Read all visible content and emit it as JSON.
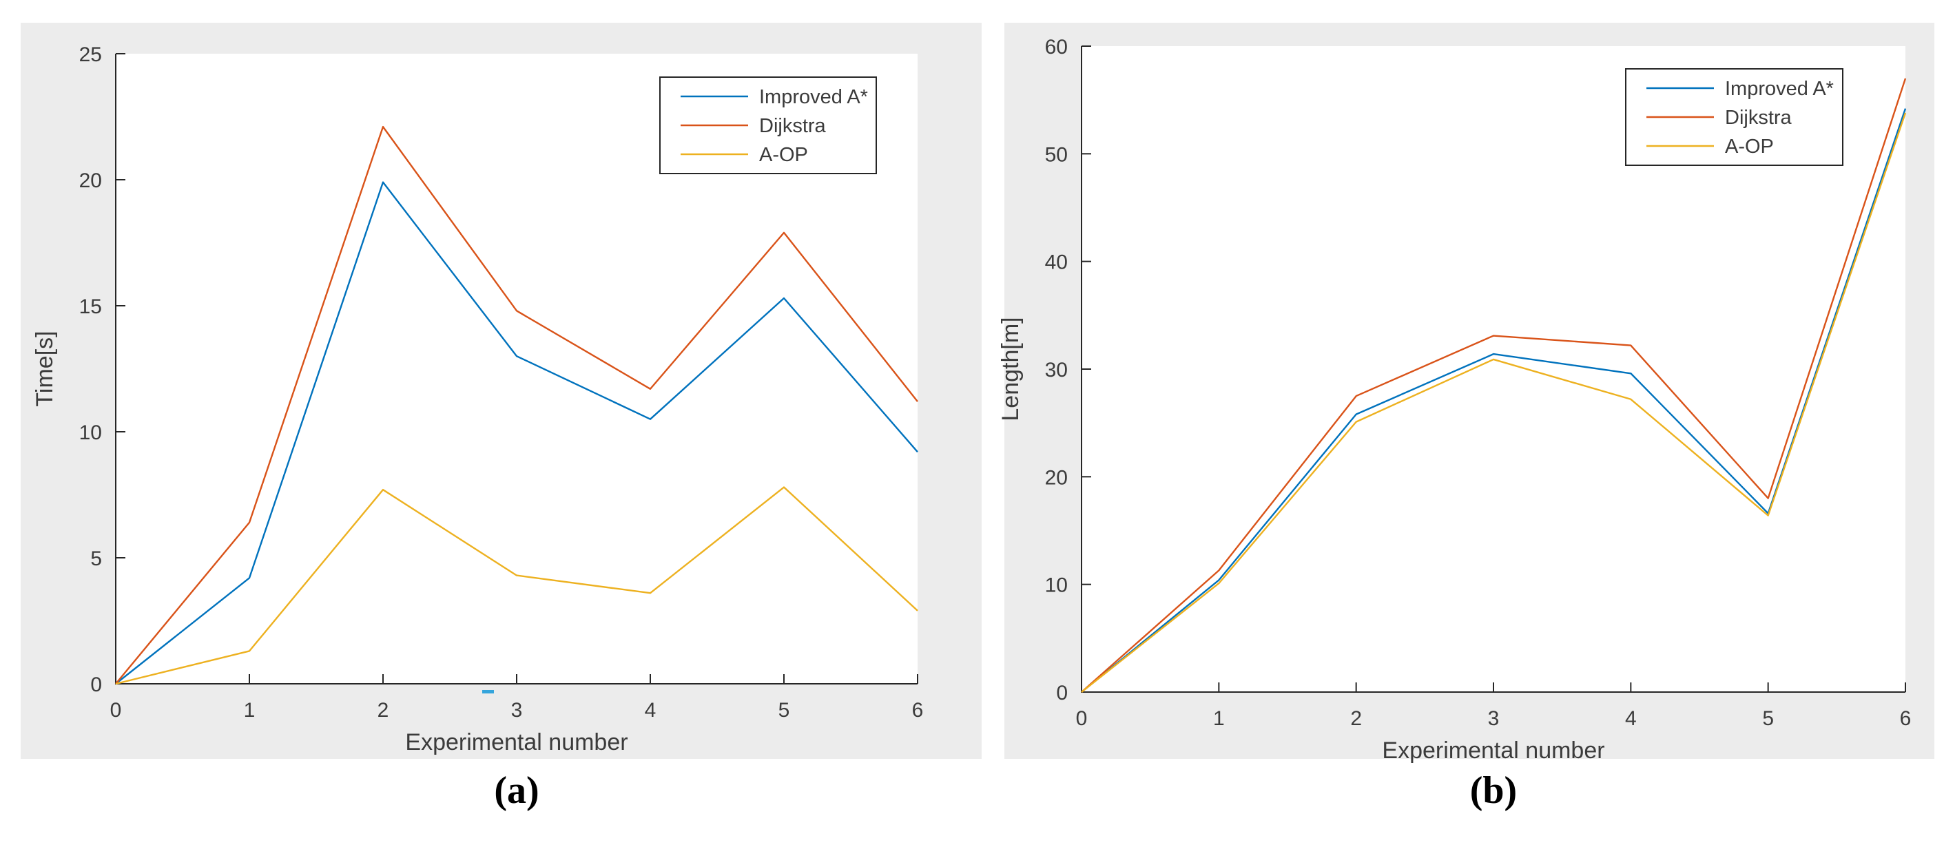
{
  "figure": {
    "caption_a": "(a)",
    "caption_b": "(b)",
    "panel_background": "#ececec",
    "plot_background": "#ffffff",
    "axis_color": "#262626",
    "label_color": "#3b3b3b"
  },
  "chart_data": [
    {
      "id": "a",
      "type": "line",
      "title": "",
      "xlabel": "Experimental number",
      "ylabel": "Time[s]",
      "caption": "(a)",
      "x": [
        0,
        1,
        2,
        3,
        4,
        5,
        6
      ],
      "xlim": [
        0,
        6
      ],
      "ylim": [
        0,
        25
      ],
      "xticks": [
        0,
        1,
        2,
        3,
        4,
        5,
        6
      ],
      "yticks": [
        0,
        5,
        10,
        15,
        20,
        25
      ],
      "grid": false,
      "legend_location": "northeast-inside",
      "legend_entries": [
        "Improved A*",
        "Dijkstra",
        "A-OP"
      ],
      "series": [
        {
          "name": "Improved A*",
          "color": "#0072BD",
          "values": [
            0,
            4.2,
            19.9,
            13.0,
            10.5,
            15.3,
            9.2
          ]
        },
        {
          "name": "Dijkstra",
          "color": "#D95319",
          "values": [
            0,
            6.4,
            22.1,
            14.8,
            11.7,
            17.9,
            11.2
          ]
        },
        {
          "name": "A-OP",
          "color": "#EDB120",
          "values": [
            0,
            1.3,
            7.7,
            4.3,
            3.6,
            7.8,
            2.9
          ]
        }
      ]
    },
    {
      "id": "b",
      "type": "line",
      "title": "",
      "xlabel": "Experimental number",
      "ylabel": "Length[m]",
      "caption": "(b)",
      "x": [
        0,
        1,
        2,
        3,
        4,
        5,
        6
      ],
      "xlim": [
        0,
        6
      ],
      "ylim": [
        0,
        60
      ],
      "xticks": [
        0,
        1,
        2,
        3,
        4,
        5,
        6
      ],
      "yticks": [
        0,
        10,
        20,
        30,
        40,
        50,
        60
      ],
      "grid": false,
      "legend_location": "northeast-inside",
      "legend_entries": [
        "Improved A*",
        "Dijkstra",
        "A-OP"
      ],
      "series": [
        {
          "name": "Improved A*",
          "color": "#0072BD",
          "values": [
            0,
            10.4,
            25.8,
            31.4,
            29.6,
            16.6,
            54.2
          ]
        },
        {
          "name": "Dijkstra",
          "color": "#D95319",
          "values": [
            0,
            11.3,
            27.5,
            33.1,
            32.2,
            18.0,
            57.0
          ]
        },
        {
          "name": "A-OP",
          "color": "#EDB120",
          "values": [
            0,
            10.1,
            25.1,
            30.9,
            27.2,
            16.4,
            53.8
          ]
        }
      ]
    }
  ]
}
